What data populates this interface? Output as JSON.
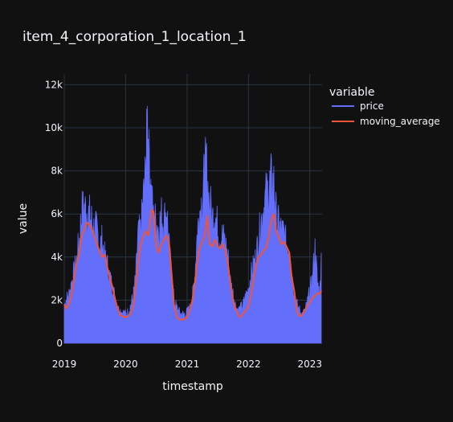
{
  "chart_data": {
    "type": "area",
    "title": "item_4_corporation_1_location_1",
    "xlabel": "timestamp",
    "ylabel": "value",
    "x_ticks": [
      "2019",
      "2020",
      "2021",
      "2022",
      "2023"
    ],
    "y_ticks": [
      "0",
      "2k",
      "4k",
      "6k",
      "8k",
      "10k",
      "12k"
    ],
    "y_tick_values": [
      0,
      2000,
      4000,
      6000,
      8000,
      10000,
      12000
    ],
    "xlim": [
      "2019-01-01",
      "2023-03-15"
    ],
    "ylim": [
      0,
      12500
    ],
    "grid": true,
    "legend": {
      "title": "variable",
      "placement": "top-right"
    },
    "colors": {
      "background": "#111111",
      "grid": "#283442",
      "price": "#636efa",
      "moving_average": "#ef553b"
    },
    "series": [
      {
        "name": "price",
        "style": "filled-area",
        "points": [
          [
            "2019-01-01",
            2000
          ],
          [
            "2019-01-15",
            2300
          ],
          [
            "2019-02-01",
            2600
          ],
          [
            "2019-02-15",
            3200
          ],
          [
            "2019-03-01",
            3700
          ],
          [
            "2019-03-15",
            4300
          ],
          [
            "2019-04-01",
            5400
          ],
          [
            "2019-04-15",
            6800
          ],
          [
            "2019-05-01",
            7000
          ],
          [
            "2019-05-15",
            6900
          ],
          [
            "2019-06-01",
            6600
          ],
          [
            "2019-06-15",
            6300
          ],
          [
            "2019-07-01",
            5800
          ],
          [
            "2019-07-15",
            5900
          ],
          [
            "2019-08-01",
            5000
          ],
          [
            "2019-08-15",
            5300
          ],
          [
            "2019-09-01",
            4300
          ],
          [
            "2019-09-15",
            4000
          ],
          [
            "2019-10-01",
            3300
          ],
          [
            "2019-10-15",
            3000
          ],
          [
            "2019-11-01",
            2200
          ],
          [
            "2019-11-15",
            1800
          ],
          [
            "2019-12-01",
            1700
          ],
          [
            "2019-12-15",
            1600
          ],
          [
            "2020-01-01",
            1500
          ],
          [
            "2020-01-15",
            1600
          ],
          [
            "2020-02-01",
            2000
          ],
          [
            "2020-02-15",
            2400
          ],
          [
            "2020-03-01",
            3400
          ],
          [
            "2020-03-15",
            5500
          ],
          [
            "2020-04-01",
            5800
          ],
          [
            "2020-04-15",
            7500
          ],
          [
            "2020-05-01",
            9000
          ],
          [
            "2020-05-10",
            11600
          ],
          [
            "2020-05-20",
            9500
          ],
          [
            "2020-06-01",
            7800
          ],
          [
            "2020-06-15",
            6400
          ],
          [
            "2020-07-01",
            6300
          ],
          [
            "2020-07-15",
            6000
          ],
          [
            "2020-08-01",
            6600
          ],
          [
            "2020-08-15",
            6200
          ],
          [
            "2020-09-01",
            7000
          ],
          [
            "2020-09-15",
            5000
          ],
          [
            "2020-10-01",
            3500
          ],
          [
            "2020-10-15",
            2200
          ],
          [
            "2020-11-01",
            1800
          ],
          [
            "2020-11-15",
            1600
          ],
          [
            "2020-12-01",
            1500
          ],
          [
            "2020-12-15",
            1500
          ],
          [
            "2021-01-01",
            1600
          ],
          [
            "2021-01-15",
            1800
          ],
          [
            "2021-02-01",
            2300
          ],
          [
            "2021-02-15",
            3500
          ],
          [
            "2021-03-01",
            5500
          ],
          [
            "2021-03-15",
            6800
          ],
          [
            "2021-04-01",
            7500
          ],
          [
            "2021-04-15",
            8800
          ],
          [
            "2021-04-25",
            9300
          ],
          [
            "2021-05-10",
            7500
          ],
          [
            "2021-06-01",
            6500
          ],
          [
            "2021-06-15",
            6800
          ],
          [
            "2021-07-01",
            6000
          ],
          [
            "2021-07-15",
            5500
          ],
          [
            "2021-08-01",
            5500
          ],
          [
            "2021-08-15",
            5200
          ],
          [
            "2021-09-01",
            4500
          ],
          [
            "2021-09-15",
            3200
          ],
          [
            "2021-10-01",
            2600
          ],
          [
            "2021-10-15",
            2000
          ],
          [
            "2021-11-01",
            1700
          ],
          [
            "2021-11-15",
            1800
          ],
          [
            "2021-12-01",
            2000
          ],
          [
            "2021-12-15",
            2400
          ],
          [
            "2022-01-01",
            2800
          ],
          [
            "2022-01-15",
            3500
          ],
          [
            "2022-02-01",
            4000
          ],
          [
            "2022-02-15",
            4500
          ],
          [
            "2022-03-01",
            5300
          ],
          [
            "2022-03-15",
            6200
          ],
          [
            "2022-04-01",
            7000
          ],
          [
            "2022-04-15",
            7600
          ],
          [
            "2022-05-01",
            8000
          ],
          [
            "2022-05-15",
            8400
          ],
          [
            "2022-06-01",
            8300
          ],
          [
            "2022-06-15",
            6500
          ],
          [
            "2022-07-01",
            6000
          ],
          [
            "2022-07-15",
            5800
          ],
          [
            "2022-08-01",
            5600
          ],
          [
            "2022-08-15",
            5000
          ],
          [
            "2022-09-01",
            5000
          ],
          [
            "2022-09-15",
            3500
          ],
          [
            "2022-10-01",
            2700
          ],
          [
            "2022-10-15",
            2000
          ],
          [
            "2022-11-01",
            1700
          ],
          [
            "2022-11-15",
            1500
          ],
          [
            "2022-12-01",
            1600
          ],
          [
            "2022-12-15",
            2000
          ],
          [
            "2023-01-01",
            2700
          ],
          [
            "2023-01-15",
            3200
          ],
          [
            "2023-02-01",
            4900
          ],
          [
            "2023-02-15",
            3200
          ],
          [
            "2023-03-01",
            2500
          ],
          [
            "2023-03-10",
            4200
          ]
        ]
      },
      {
        "name": "moving_average",
        "style": "line",
        "points": [
          [
            "2019-01-01",
            1800
          ],
          [
            "2019-01-15",
            1600
          ],
          [
            "2019-02-01",
            1900
          ],
          [
            "2019-02-15",
            2300
          ],
          [
            "2019-03-01",
            3000
          ],
          [
            "2019-03-15",
            3700
          ],
          [
            "2019-04-01",
            4200
          ],
          [
            "2019-04-15",
            5000
          ],
          [
            "2019-05-01",
            5300
          ],
          [
            "2019-05-15",
            5600
          ],
          [
            "2019-06-01",
            5500
          ],
          [
            "2019-06-15",
            5300
          ],
          [
            "2019-07-01",
            4900
          ],
          [
            "2019-07-15",
            4600
          ],
          [
            "2019-08-01",
            4200
          ],
          [
            "2019-08-15",
            4000
          ],
          [
            "2019-09-01",
            4100
          ],
          [
            "2019-09-15",
            3500
          ],
          [
            "2019-10-01",
            3000
          ],
          [
            "2019-10-15",
            2600
          ],
          [
            "2019-11-01",
            2000
          ],
          [
            "2019-11-15",
            1600
          ],
          [
            "2019-12-01",
            1300
          ],
          [
            "2019-12-15",
            1250
          ],
          [
            "2020-01-01",
            1200
          ],
          [
            "2020-01-15",
            1250
          ],
          [
            "2020-02-01",
            1400
          ],
          [
            "2020-02-15",
            1700
          ],
          [
            "2020-03-01",
            2600
          ],
          [
            "2020-03-15",
            3700
          ],
          [
            "2020-04-01",
            4600
          ],
          [
            "2020-04-15",
            5000
          ],
          [
            "2020-05-01",
            5200
          ],
          [
            "2020-05-15",
            5000
          ],
          [
            "2020-05-25",
            5600
          ],
          [
            "2020-06-05",
            6200
          ],
          [
            "2020-06-15",
            6100
          ],
          [
            "2020-07-01",
            4500
          ],
          [
            "2020-07-15",
            4200
          ],
          [
            "2020-08-01",
            4600
          ],
          [
            "2020-08-15",
            4800
          ],
          [
            "2020-09-01",
            5000
          ],
          [
            "2020-09-15",
            4700
          ],
          [
            "2020-10-01",
            3200
          ],
          [
            "2020-10-15",
            1800
          ],
          [
            "2020-11-01",
            1200
          ],
          [
            "2020-11-15",
            1100
          ],
          [
            "2020-12-01",
            1100
          ],
          [
            "2020-12-15",
            1100
          ],
          [
            "2021-01-01",
            1200
          ],
          [
            "2021-01-15",
            1500
          ],
          [
            "2021-02-01",
            2000
          ],
          [
            "2021-02-15",
            2700
          ],
          [
            "2021-03-01",
            3600
          ],
          [
            "2021-03-15",
            4400
          ],
          [
            "2021-04-01",
            4700
          ],
          [
            "2021-04-15",
            5000
          ],
          [
            "2021-05-01",
            5900
          ],
          [
            "2021-05-15",
            4600
          ],
          [
            "2021-06-01",
            4500
          ],
          [
            "2021-06-15",
            4800
          ],
          [
            "2021-07-01",
            4500
          ],
          [
            "2021-07-15",
            4400
          ],
          [
            "2021-08-01",
            4600
          ],
          [
            "2021-08-15",
            4300
          ],
          [
            "2021-09-01",
            3700
          ],
          [
            "2021-09-15",
            2800
          ],
          [
            "2021-10-01",
            2000
          ],
          [
            "2021-10-15",
            1600
          ],
          [
            "2021-11-01",
            1300
          ],
          [
            "2021-11-15",
            1200
          ],
          [
            "2021-12-01",
            1400
          ],
          [
            "2021-12-15",
            1500
          ],
          [
            "2022-01-01",
            1700
          ],
          [
            "2022-01-15",
            2200
          ],
          [
            "2022-02-01",
            3000
          ],
          [
            "2022-02-15",
            3600
          ],
          [
            "2022-03-01",
            4000
          ],
          [
            "2022-03-15",
            4100
          ],
          [
            "2022-04-01",
            4300
          ],
          [
            "2022-04-15",
            4400
          ],
          [
            "2022-05-01",
            4900
          ],
          [
            "2022-05-15",
            5700
          ],
          [
            "2022-06-01",
            6000
          ],
          [
            "2022-06-15",
            5200
          ],
          [
            "2022-07-01",
            4900
          ],
          [
            "2022-07-15",
            4600
          ],
          [
            "2022-08-01",
            4700
          ],
          [
            "2022-08-15",
            4500
          ],
          [
            "2022-09-01",
            4200
          ],
          [
            "2022-09-15",
            3100
          ],
          [
            "2022-10-01",
            2400
          ],
          [
            "2022-10-15",
            1500
          ],
          [
            "2022-11-01",
            1250
          ],
          [
            "2022-11-15",
            1300
          ],
          [
            "2022-12-01",
            1500
          ],
          [
            "2022-12-15",
            1700
          ],
          [
            "2023-01-01",
            1900
          ],
          [
            "2023-01-15",
            2100
          ],
          [
            "2023-02-01",
            2200
          ],
          [
            "2023-02-15",
            2300
          ],
          [
            "2023-03-01",
            2300
          ],
          [
            "2023-03-10",
            2450
          ]
        ]
      }
    ]
  }
}
